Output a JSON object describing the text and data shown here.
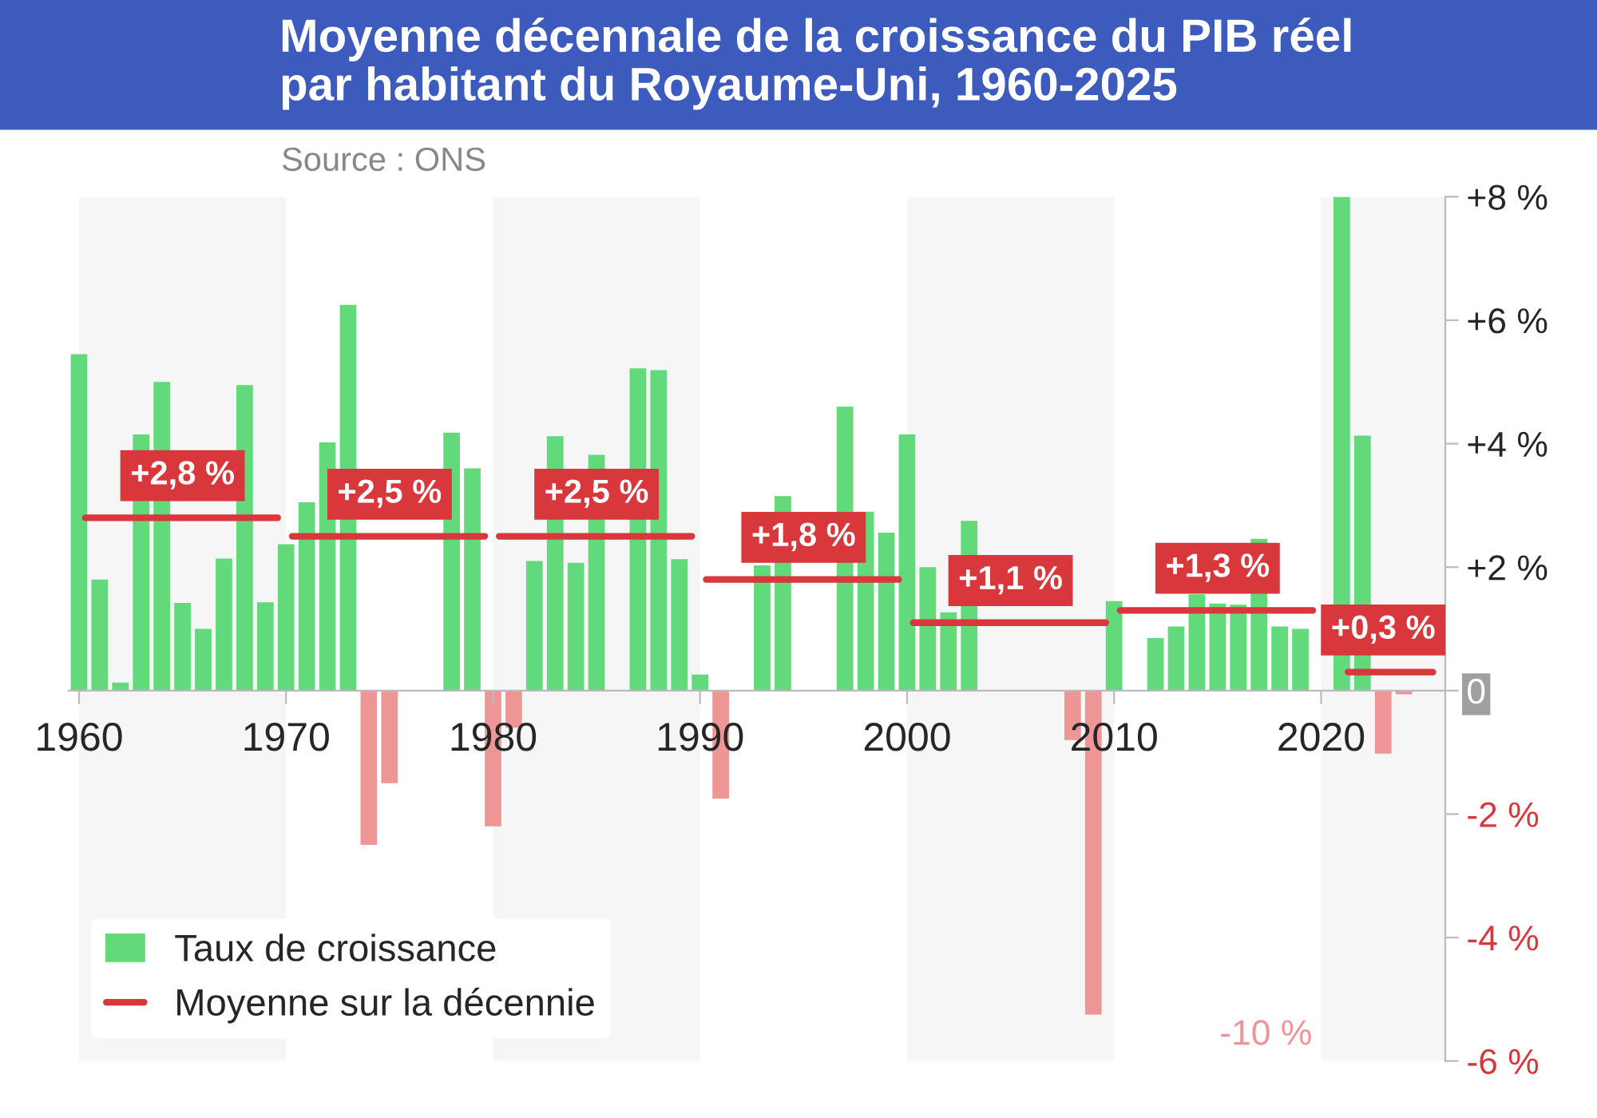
{
  "chart_data": {
    "type": "bar",
    "title": "Moyenne décennale de la croissance du PIB réel\npar habitant du Royaume-Uni, 1960-2025",
    "annotations": [
      "Source : ONS",
      {
        "text": "+2,8 %",
        "x": 1965,
        "y": 2.8
      },
      {
        "text": "+2,5 %",
        "x": 1975,
        "y": 2.5
      },
      {
        "text": "+2,5 %",
        "x": 1985,
        "y": 2.5
      },
      {
        "text": "+1,8 %",
        "x": 1995,
        "y": 1.8
      },
      {
        "text": "+1,1 %",
        "x": 2005,
        "y": 1.1
      },
      {
        "text": "+1,3 %",
        "x": 2015,
        "y": 1.3
      },
      {
        "text": "+0,3 %",
        "x": 2023,
        "y": 0.3
      },
      {
        "text": "-10 %",
        "x": 2020,
        "y": -6
      }
    ],
    "x": [
      1960,
      1961,
      1962,
      1963,
      1964,
      1965,
      1966,
      1967,
      1968,
      1969,
      1970,
      1971,
      1972,
      1973,
      1974,
      1975,
      1976,
      1977,
      1978,
      1979,
      1980,
      1981,
      1982,
      1983,
      1984,
      1985,
      1986,
      1987,
      1988,
      1989,
      1990,
      1991,
      1992,
      1993,
      1994,
      1995,
      1996,
      1997,
      1998,
      1999,
      2000,
      2001,
      2002,
      2003,
      2004,
      2005,
      2006,
      2007,
      2008,
      2009,
      2010,
      2011,
      2012,
      2013,
      2014,
      2015,
      2016,
      2017,
      2018,
      2019,
      2020,
      2021,
      2022,
      2023,
      2024
    ],
    "series": [
      {
        "name": "Taux de croissance",
        "values": [
          5.45,
          1.8,
          0.13,
          4.15,
          5.0,
          1.42,
          1.0,
          2.14,
          4.95,
          1.43,
          2.37,
          3.05,
          4.02,
          6.25,
          -2.5,
          -1.5,
          null,
          null,
          4.18,
          3.6,
          -2.2,
          -0.6,
          2.1,
          4.12,
          2.07,
          3.82,
          null,
          5.22,
          5.19,
          2.13,
          0.26,
          -1.75,
          0,
          2.03,
          3.15,
          null,
          null,
          4.6,
          2.9,
          2.56,
          4.15,
          2.0,
          1.27,
          2.75,
          null,
          null,
          null,
          null,
          -0.8,
          -5.25,
          1.45,
          0,
          0.85,
          1.04,
          1.56,
          1.41,
          1.39,
          2.46,
          1.04,
          1.0,
          null,
          8.0,
          4.13,
          -1.02,
          -0.06
        ],
        "colors": [
          "#62d97b",
          "#62d97b",
          "#62d97b",
          "#62d97b",
          "#62d97b",
          "#62d97b",
          "#62d97b",
          "#62d97b",
          "#62d97b",
          "#62d97b",
          "#62d97b",
          "#62d97b",
          "#62d97b",
          "#62d97b",
          "#ee9696",
          "#ee9696",
          "#62d97b",
          "#62d97b",
          "#62d97b",
          "#62d97b",
          "#ee9696",
          "#ee9696",
          "#62d97b",
          "#62d97b",
          "#62d97b",
          "#62d97b",
          "#62d97b",
          "#62d97b",
          "#62d97b",
          "#62d97b",
          "#62d97b",
          "#ee9696",
          "#62d97b",
          "#62d97b",
          "#62d97b",
          "#62d97b",
          "#62d97b",
          "#62d97b",
          "#62d97b",
          "#62d97b",
          "#62d97b",
          "#62d97b",
          "#62d97b",
          "#62d97b",
          "#62d97b",
          "#62d97b",
          "#62d97b",
          "#62d97b",
          "#ee9696",
          "#ee9696",
          "#62d97b",
          "#62d97b",
          "#62d97b",
          "#62d97b",
          "#62d97b",
          "#62d97b",
          "#62d97b",
          "#62d97b",
          "#62d97b",
          "#62d97b",
          "#ee9696",
          "#62d97b",
          "#62d97b",
          "#ee9696",
          "#ee9696"
        ]
      },
      {
        "name": "Moyenne sur la décennie",
        "type": "line",
        "color": "#d8373c",
        "x": [
          1960.3,
          1969.6,
          1969.8,
          1970.3,
          1979.6,
          1979.8,
          1980.3,
          1989.6,
          1989.8,
          1990.3,
          1999.6,
          1999.8,
          2000.3,
          2009.6,
          2009.8,
          2010.3,
          2019.6,
          2019.8,
          2021.3,
          2025.4
        ],
        "values": [
          2.8,
          2.8,
          null,
          2.5,
          2.5,
          null,
          2.5,
          2.5,
          null,
          1.8,
          1.8,
          null,
          1.1,
          1.1,
          null,
          1.3,
          1.3,
          null,
          0.3,
          0.3
        ]
      }
    ],
    "bands": [
      {
        "axis": "x",
        "from": 1960,
        "to": 1970,
        "color": "#f6f6f6"
      },
      {
        "axis": "x",
        "from": 1980,
        "to": 1990,
        "color": "#f6f6f6"
      },
      {
        "axis": "x",
        "from": 2000,
        "to": 2010,
        "color": "#f6f6f6"
      },
      {
        "axis": "x",
        "from": 2020,
        "to": 2026,
        "color": "#f6f6f6"
      }
    ],
    "xlim": [
      1959.5,
      2026
    ],
    "xticks": [
      1960,
      1970,
      1980,
      1990,
      2000,
      2010,
      2020
    ],
    "ylim": [
      -6,
      8
    ],
    "yticks": [
      {
        "value": 8,
        "label": "+8 %"
      },
      {
        "value": 6,
        "label": "+6 %"
      },
      {
        "value": 4,
        "label": "+4 %"
      },
      {
        "value": 2,
        "label": "+2 %"
      },
      0,
      {
        "value": -2,
        "label": "-2 %"
      },
      {
        "value": -4,
        "label": "-4 %"
      },
      {
        "value": -6,
        "label": "-6 %"
      }
    ],
    "legend": "bottom left",
    "grid": false
  }
}
